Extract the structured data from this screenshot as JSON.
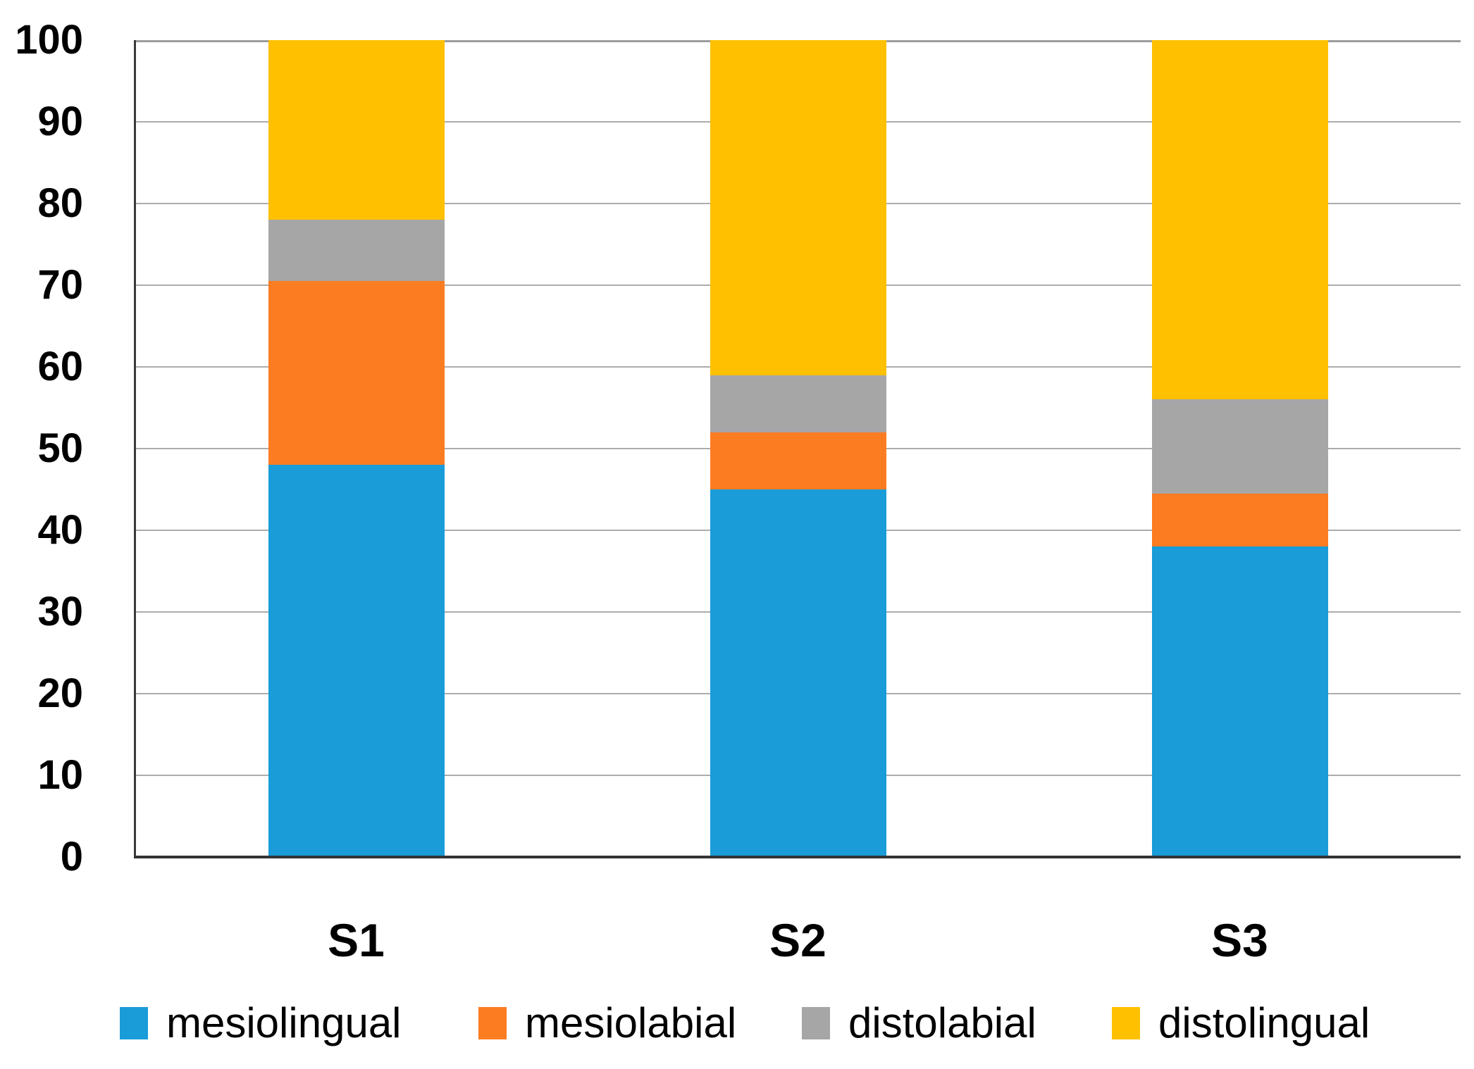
{
  "chart_data": {
    "type": "bar",
    "stacked": true,
    "units": "percent",
    "title": "",
    "xlabel": "",
    "ylabel": "",
    "categories": [
      "S1",
      "S2",
      "S3"
    ],
    "series": [
      {
        "name": "mesiolingual",
        "color": "#199cd8",
        "values": [
          48,
          45,
          38
        ]
      },
      {
        "name": "mesiolabial",
        "color": "#fc7c22",
        "values": [
          22.5,
          7,
          6.5
        ]
      },
      {
        "name": "distolabial",
        "color": "#a6a6a6",
        "values": [
          7.5,
          7,
          11.5
        ]
      },
      {
        "name": "distolingual",
        "color": "#ffc000",
        "values": [
          22,
          41,
          44
        ]
      }
    ],
    "ylim": [
      0,
      100
    ],
    "yticks": [
      0,
      10,
      20,
      30,
      40,
      50,
      60,
      70,
      80,
      90,
      100
    ],
    "grid": true,
    "gridline_color": "#acacac",
    "axis_line_color": "#333333",
    "legend_position": "bottom"
  }
}
